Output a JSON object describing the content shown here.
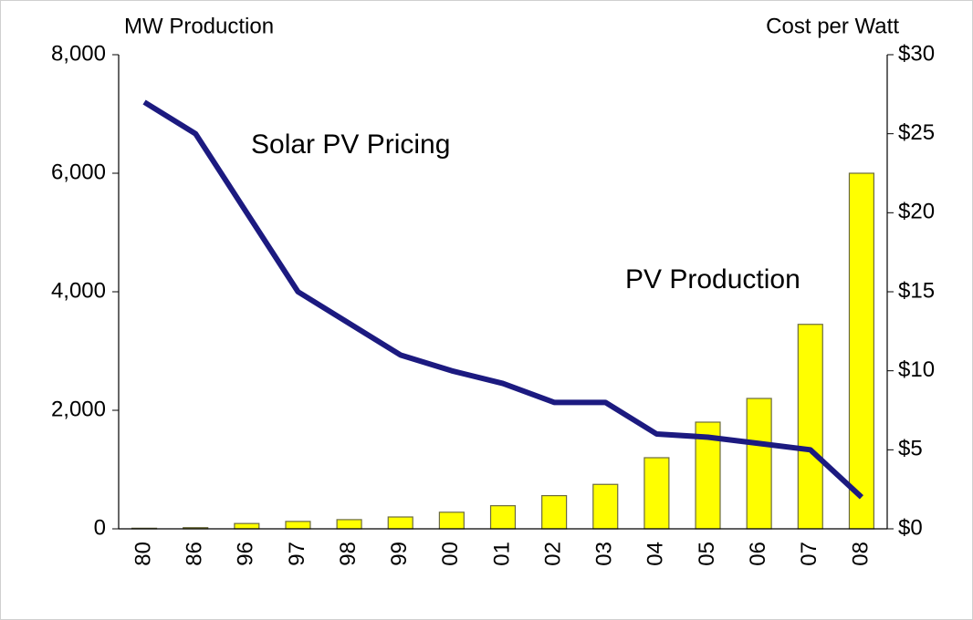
{
  "chart_data": {
    "type": "bar_line",
    "y_axis_title": "MW Production",
    "y2_axis_title": "Cost per Watt",
    "annotations": [
      "Solar PV Pricing",
      "PV Production"
    ],
    "categories": [
      "80",
      "86",
      "96",
      "97",
      "98",
      "99",
      "00",
      "01",
      "02",
      "03",
      "04",
      "05",
      "06",
      "07",
      "08"
    ],
    "series": [
      {
        "name": "PV Production",
        "type": "bar",
        "color": "#ffff00",
        "values": [
          10,
          20,
          90,
          125,
          155,
          200,
          280,
          390,
          560,
          750,
          1200,
          1800,
          2200,
          3450,
          6000
        ]
      },
      {
        "name": "Solar PV Pricing",
        "type": "line",
        "axis": "y2",
        "color": "#1c1a80",
        "values": [
          27,
          25,
          20,
          15,
          13,
          11,
          10,
          9.2,
          8,
          8,
          6,
          5.8,
          5.4,
          5,
          2
        ]
      }
    ],
    "ylim": [
      0,
      8000
    ],
    "yticks": [
      0,
      {
        "value": 2000,
        "label": "2,000"
      },
      {
        "value": 4000,
        "label": "4,000"
      },
      {
        "value": 6000,
        "label": "6,000"
      },
      {
        "value": 8000,
        "label": "8,000"
      }
    ],
    "y2lim": [
      0,
      30
    ],
    "y2ticks": [
      {
        "value": 0,
        "label": "$0"
      },
      {
        "value": 5,
        "label": "$5"
      },
      {
        "value": 10,
        "label": "$10"
      },
      {
        "value": 15,
        "label": "$15"
      },
      {
        "value": 20,
        "label": "$20"
      },
      {
        "value": 25,
        "label": "$25"
      },
      {
        "value": 30,
        "label": "$30"
      }
    ]
  }
}
